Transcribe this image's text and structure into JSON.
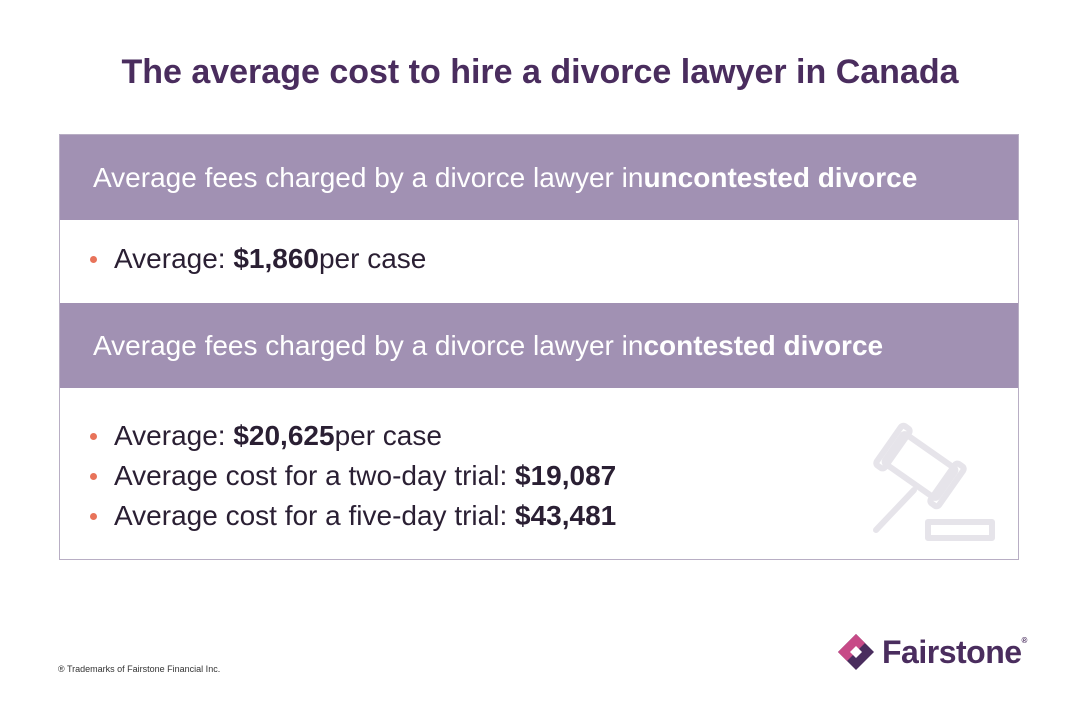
{
  "title": "The average cost to hire a divorce lawyer in Canada",
  "sections": [
    {
      "heading_prefix": "Average fees charged by a divorce lawyer in ",
      "heading_bold": "uncontested divorce",
      "items": [
        {
          "label": "Average: ",
          "value": "$1,860",
          "suffix": " per case"
        }
      ]
    },
    {
      "heading_prefix": "Average fees charged by a divorce lawyer in ",
      "heading_bold": "contested divorce",
      "items": [
        {
          "label": "Average: ",
          "value": "$20,625",
          "suffix": " per case"
        },
        {
          "label": "Average cost for a two-day trial: ",
          "value": "$19,087",
          "suffix": ""
        },
        {
          "label": "Average cost for a five-day trial: ",
          "value": "$43,481",
          "suffix": ""
        }
      ]
    }
  ],
  "footnote": "® Trademarks of Fairstone Financial Inc.",
  "logo": {
    "wordmark": "Fairstone",
    "mark": "®"
  },
  "icons": {
    "decoration": "gavel-icon",
    "logo": "fairstone-diamond-icon"
  },
  "colors": {
    "title": "#4a2d5e",
    "band": "#a191b3",
    "bullet": "#e8735a",
    "border": "#b8aec4"
  }
}
